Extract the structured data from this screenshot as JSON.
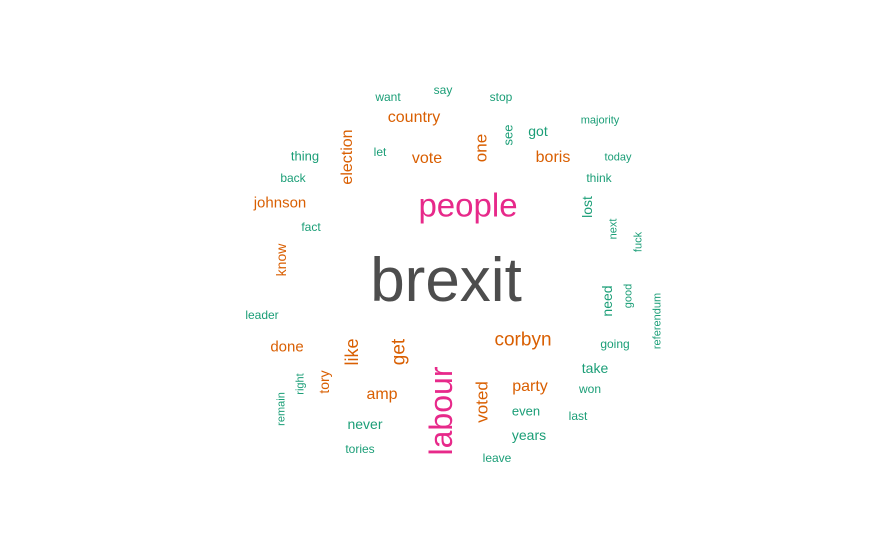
{
  "chart_data": {
    "type": "wordcloud",
    "colors": {
      "tier1": "#4d4d4d",
      "tier2": "#e7298a",
      "tier3": "#d95f02",
      "tier4": "#1b9e77"
    },
    "words": [
      {
        "text": "brexit",
        "tier": 1,
        "rotated": false
      },
      {
        "text": "people",
        "tier": 2,
        "rotated": false
      },
      {
        "text": "labour",
        "tier": 2,
        "rotated": true
      },
      {
        "text": "corbyn",
        "tier": 3,
        "rotated": false
      },
      {
        "text": "get",
        "tier": 3,
        "rotated": true
      },
      {
        "text": "like",
        "tier": 3,
        "rotated": true
      },
      {
        "text": "vote",
        "tier": 3,
        "rotated": false
      },
      {
        "text": "one",
        "tier": 3,
        "rotated": true
      },
      {
        "text": "country",
        "tier": 3,
        "rotated": false
      },
      {
        "text": "election",
        "tier": 3,
        "rotated": true
      },
      {
        "text": "boris",
        "tier": 3,
        "rotated": false
      },
      {
        "text": "johnson",
        "tier": 3,
        "rotated": false
      },
      {
        "text": "party",
        "tier": 3,
        "rotated": false
      },
      {
        "text": "voted",
        "tier": 3,
        "rotated": true
      },
      {
        "text": "amp",
        "tier": 3,
        "rotated": false
      },
      {
        "text": "done",
        "tier": 3,
        "rotated": false
      },
      {
        "text": "know",
        "tier": 3,
        "rotated": true
      },
      {
        "text": "tory",
        "tier": 3,
        "rotated": true
      },
      {
        "text": "never",
        "tier": 4,
        "rotated": false
      },
      {
        "text": "years",
        "tier": 4,
        "rotated": false
      },
      {
        "text": "got",
        "tier": 4,
        "rotated": false
      },
      {
        "text": "lost",
        "tier": 4,
        "rotated": true
      },
      {
        "text": "need",
        "tier": 4,
        "rotated": true
      },
      {
        "text": "take",
        "tier": 4,
        "rotated": false
      },
      {
        "text": "even",
        "tier": 4,
        "rotated": false
      },
      {
        "text": "thing",
        "tier": 4,
        "rotated": false
      },
      {
        "text": "see",
        "tier": 4,
        "rotated": true
      },
      {
        "text": "leader",
        "tier": 4,
        "rotated": false
      },
      {
        "text": "tories",
        "tier": 4,
        "rotated": false
      },
      {
        "text": "won",
        "tier": 4,
        "rotated": false
      },
      {
        "text": "going",
        "tier": 4,
        "rotated": false
      },
      {
        "text": "back",
        "tier": 4,
        "rotated": false
      },
      {
        "text": "leave",
        "tier": 4,
        "rotated": false
      },
      {
        "text": "say",
        "tier": 4,
        "rotated": false
      },
      {
        "text": "stop",
        "tier": 4,
        "rotated": false
      },
      {
        "text": "want",
        "tier": 4,
        "rotated": false
      },
      {
        "text": "let",
        "tier": 4,
        "rotated": false
      },
      {
        "text": "fact",
        "tier": 4,
        "rotated": false
      },
      {
        "text": "think",
        "tier": 4,
        "rotated": false
      },
      {
        "text": "majority",
        "tier": 4,
        "rotated": false
      },
      {
        "text": "today",
        "tier": 4,
        "rotated": false
      },
      {
        "text": "next",
        "tier": 4,
        "rotated": true
      },
      {
        "text": "fuck",
        "tier": 4,
        "rotated": true
      },
      {
        "text": "good",
        "tier": 4,
        "rotated": true
      },
      {
        "text": "referendum",
        "tier": 4,
        "rotated": true
      },
      {
        "text": "right",
        "tier": 4,
        "rotated": true
      },
      {
        "text": "remain",
        "tier": 4,
        "rotated": true
      },
      {
        "text": "last",
        "tier": 4,
        "rotated": false
      }
    ]
  }
}
